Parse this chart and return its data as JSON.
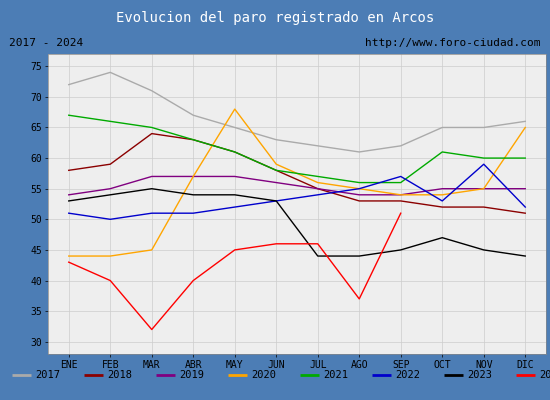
{
  "title": "Evolucion del paro registrado en Arcos",
  "title_bg": "#5b9bd5",
  "subtitle_left": "2017 - 2024",
  "subtitle_right": "http://www.foro-ciudad.com",
  "months": [
    "ENE",
    "FEB",
    "MAR",
    "ABR",
    "MAY",
    "JUN",
    "JUL",
    "AGO",
    "SEP",
    "OCT",
    "NOV",
    "DIC"
  ],
  "ylim": [
    28,
    77
  ],
  "yticks": [
    30,
    35,
    40,
    45,
    50,
    55,
    60,
    65,
    70,
    75
  ],
  "series": {
    "2017": {
      "color": "#aaaaaa",
      "data": [
        72,
        74,
        71,
        67,
        65,
        63,
        62,
        61,
        62,
        65,
        65,
        66
      ]
    },
    "2018": {
      "color": "#8b0000",
      "data": [
        58,
        59,
        64,
        63,
        61,
        58,
        55,
        53,
        53,
        52,
        52,
        51
      ]
    },
    "2019": {
      "color": "#800080",
      "data": [
        54,
        55,
        57,
        57,
        57,
        56,
        55,
        54,
        54,
        55,
        55,
        55
      ]
    },
    "2020": {
      "color": "#ffa500",
      "data": [
        44,
        44,
        45,
        57,
        68,
        59,
        56,
        55,
        54,
        54,
        55,
        65
      ]
    },
    "2021": {
      "color": "#00aa00",
      "data": [
        67,
        66,
        65,
        63,
        61,
        58,
        57,
        56,
        56,
        61,
        60,
        60
      ]
    },
    "2022": {
      "color": "#0000cc",
      "data": [
        51,
        50,
        51,
        51,
        52,
        53,
        54,
        55,
        57,
        53,
        59,
        52
      ]
    },
    "2023": {
      "color": "#000000",
      "data": [
        53,
        54,
        55,
        54,
        54,
        53,
        44,
        44,
        45,
        47,
        45,
        44
      ]
    },
    "2024": {
      "color": "#ff0000",
      "data": [
        43,
        40,
        32,
        40,
        45,
        46,
        46,
        37,
        51,
        null,
        null,
        null
      ]
    }
  }
}
